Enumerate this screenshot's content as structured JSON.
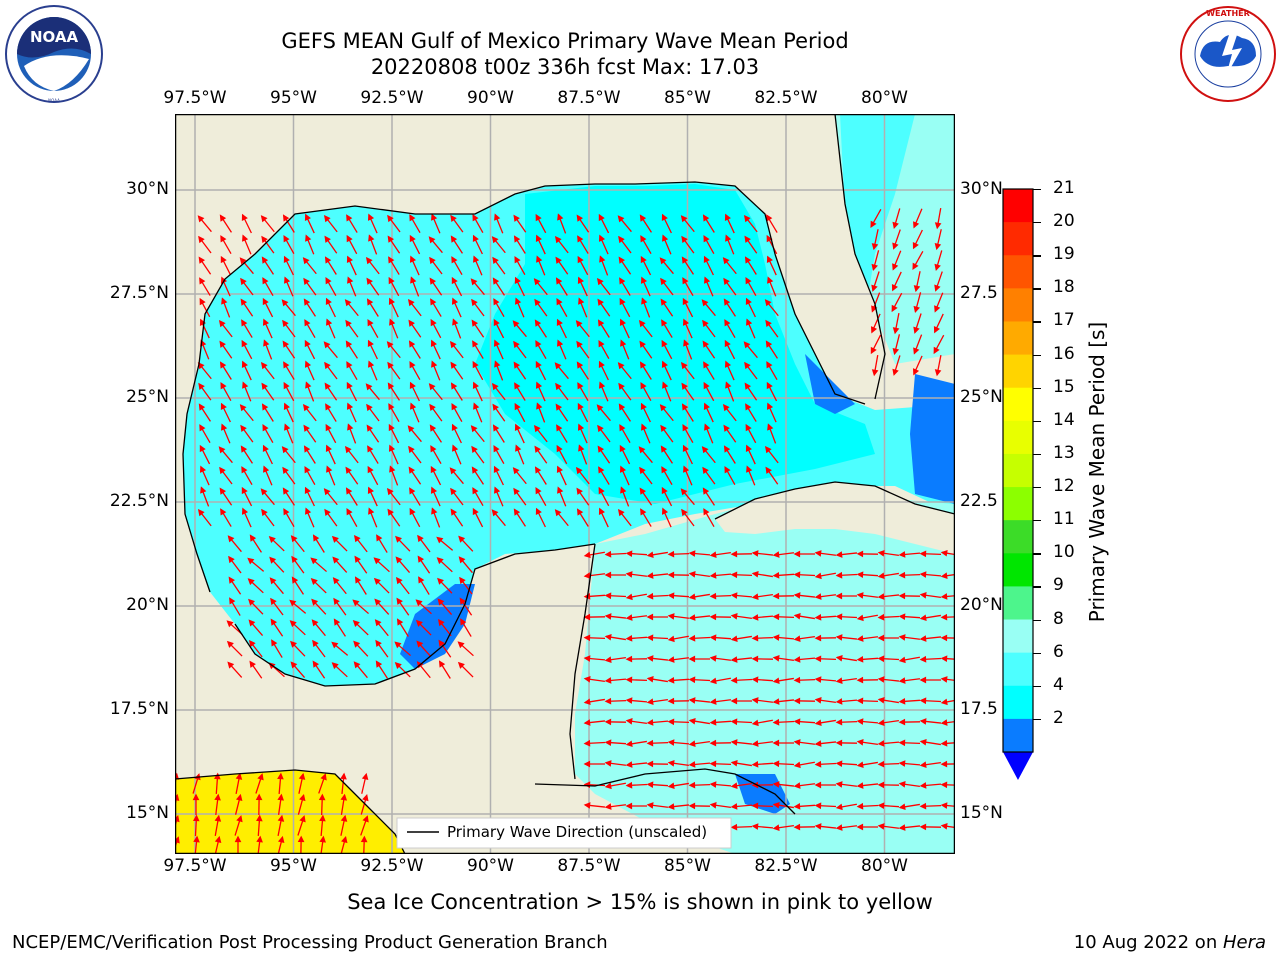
{
  "header": {
    "title_line1": "GEFS MEAN Gulf of Mexico Primary Wave Mean Period",
    "title_line2": "20220808 t00z 336h fcst   Max: 17.03"
  },
  "logos": {
    "left": "NOAA",
    "left_ring_text": "NATIONAL OCEANIC AND ATMOSPHERIC ADMINISTRATION · U.S. DEPARTMENT OF COMMERCE",
    "right_ring_text": "NATIONAL WEATHER SERVICE"
  },
  "map": {
    "lon_labels": [
      "97.5°W",
      "95°W",
      "92.5°W",
      "90°W",
      "87.5°W",
      "85°W",
      "82.5°W",
      "80°W"
    ],
    "lat_labels_left": [
      "30°N",
      "27.5°N",
      "25°N",
      "22.5°N",
      "20°N",
      "17.5°N",
      "15°N"
    ],
    "lat_labels_right": [
      "30°N",
      "27.5",
      "25°N",
      "22.5",
      "20°N",
      "17.5",
      "15°N"
    ],
    "legend_label": "Primary Wave Direction (unscaled)",
    "colors": {
      "land": "#efedda",
      "cyan_4_6": "#00ffff",
      "cyan_6_8": "#4dffff",
      "cyan_8_9": "#99fff4",
      "blue_2_4": "#0a7cff",
      "ice_yellow": "#ffee00",
      "arrow": "#ff0000"
    }
  },
  "colorbar": {
    "label": "Primary Wave Mean Period [s]",
    "ticks": [
      "21",
      "20",
      "19",
      "18",
      "17",
      "16",
      "15",
      "14",
      "13",
      "12",
      "11",
      "10",
      "9",
      "8",
      "6",
      "4",
      "2"
    ],
    "colors_top_to_bottom": [
      "#ff0000",
      "#ff2a00",
      "#ff5500",
      "#ff8000",
      "#ffaa00",
      "#ffd400",
      "#ffff00",
      "#e8ff00",
      "#c6ff00",
      "#8cff00",
      "#3cdc28",
      "#00e600",
      "#4df58c",
      "#99fff4",
      "#4dffff",
      "#00ffff",
      "#0a7cff"
    ],
    "extend_color": "#0000ff"
  },
  "footer": {
    "ice_note": "Sea Ice Concentration > 15% is shown in pink to yellow",
    "branch": "NCEP/EMC/Verification Post Processing Product Generation Branch",
    "date": "10 Aug 2022 on ",
    "machine": "Hera"
  }
}
